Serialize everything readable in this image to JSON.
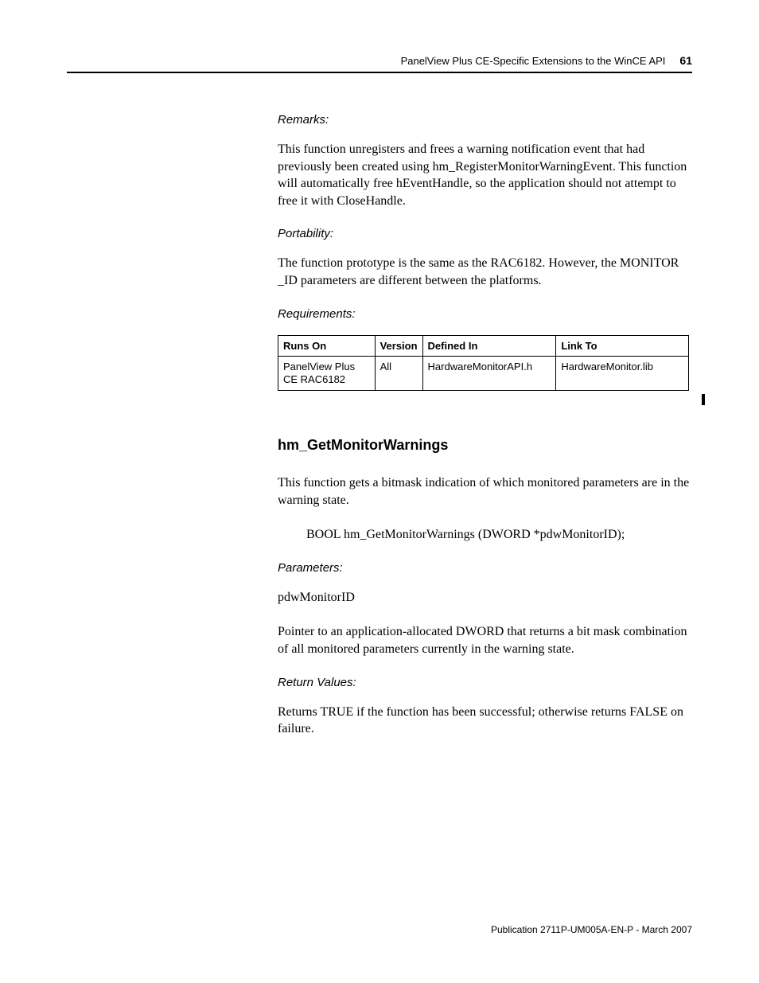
{
  "header": {
    "chapter_title": "PanelView Plus CE-Specific Extensions to the WinCE API",
    "page_number": "61"
  },
  "sections": {
    "remarks": {
      "label": "Remarks:",
      "body": "This function unregisters and frees a warning notification event that had previously been created using hm_RegisterMonitorWarningEvent. This function will automatically free hEventHandle, so the application should not attempt to free it with CloseHandle."
    },
    "portability": {
      "label": "Portability:",
      "body": "The function prototype is the same as the RAC6182. However, the MONITOR _ID parameters are different between the platforms."
    },
    "requirements": {
      "label": "Requirements:",
      "table": {
        "columns": [
          "Runs On",
          "Version",
          "Defined In",
          "Link To"
        ],
        "rows": [
          [
            "PanelView Plus CE RAC6182",
            "All",
            "HardwareMonitorAPI.h",
            "HardwareMonitor.lib"
          ]
        ]
      }
    },
    "function": {
      "heading": "hm_GetMonitorWarnings",
      "intro": "This function gets a bitmask indication of which monitored parameters are in the warning state.",
      "prototype": "BOOL hm_GetMonitorWarnings (DWORD *pdwMonitorID);"
    },
    "parameters": {
      "label": "Parameters:",
      "name": "pdwMonitorID",
      "desc": "Pointer to an application-allocated DWORD that returns a bit mask combination of all monitored parameters currently in the warning state."
    },
    "return_values": {
      "label": "Return Values:",
      "body": "Returns TRUE if the function has been successful; otherwise returns FALSE on failure."
    }
  },
  "footer": {
    "text": "Publication 2711P-UM005A-EN-P - March 2007"
  },
  "styling": {
    "page_bg": "#ffffff",
    "text_color": "#000000",
    "rule_color": "#000000",
    "body_font": "Garamond",
    "label_font": "Arial",
    "body_fontsize": 16,
    "label_fontsize": 15,
    "heading_fontsize": 18,
    "table_fontsize": 13
  }
}
